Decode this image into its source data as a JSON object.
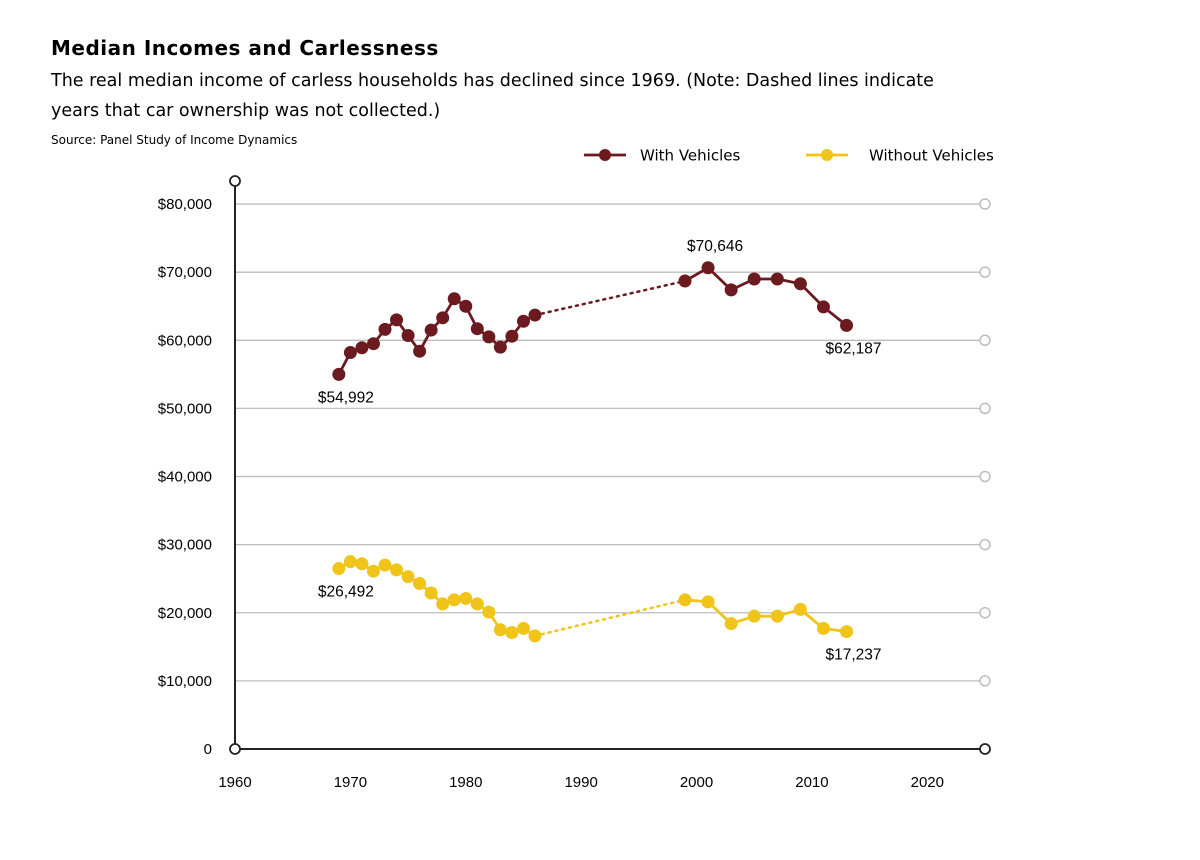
{
  "title": "Median Incomes and Carlessness",
  "subtitle": "The real median income of carless households has declined since 1969. (Note: Dashed lines indicate years that car ownership was not collected.)",
  "source": "Source: Panel Study of Income Dynamics",
  "colors": {
    "with_vehicles": "#6b1a1f",
    "without_vehicles": "#f0c419",
    "grid": "#bdbdbd",
    "axis": "#222222"
  },
  "chart_data": {
    "type": "line",
    "xlim": [
      1960,
      2025
    ],
    "ylim": [
      0,
      85000
    ],
    "x_ticks": [
      1960,
      1970,
      1980,
      1990,
      2000,
      2010,
      2020
    ],
    "x_tick_labels": [
      "1960",
      "1970",
      "1980",
      "1990",
      "2000",
      "2010",
      "2020"
    ],
    "y_ticks": [
      0,
      10000,
      20000,
      30000,
      40000,
      50000,
      60000,
      70000,
      80000
    ],
    "y_tick_labels": [
      "0",
      "$10,000",
      "$20,000",
      "$30,000",
      "$40,000",
      "$50,000",
      "$60,000",
      "$70,000",
      "$80,000"
    ],
    "grid": true,
    "legend_position": "top-right",
    "gap": [
      1986,
      1999
    ],
    "gap_style": "dotted",
    "series": [
      {
        "name": "With Vehicles",
        "color": "#6b1a1f",
        "x": [
          1969,
          1970,
          1971,
          1972,
          1973,
          1974,
          1975,
          1976,
          1977,
          1978,
          1979,
          1980,
          1981,
          1982,
          1983,
          1984,
          1985,
          1986,
          1999,
          2001,
          2003,
          2005,
          2007,
          2009,
          2011,
          2013
        ],
        "y": [
          54992,
          58200,
          58900,
          59500,
          61600,
          63000,
          60700,
          58400,
          61500,
          63300,
          66100,
          65000,
          61700,
          60500,
          59000,
          60600,
          62800,
          63700,
          68700,
          70646,
          67400,
          69000,
          69000,
          68300,
          64900,
          62187
        ]
      },
      {
        "name": "Without Vehicles",
        "color": "#f0c419",
        "x": [
          1969,
          1970,
          1971,
          1972,
          1973,
          1974,
          1975,
          1976,
          1977,
          1978,
          1979,
          1980,
          1981,
          1982,
          1983,
          1984,
          1985,
          1986,
          1999,
          2001,
          2003,
          2005,
          2007,
          2009,
          2011,
          2013
        ],
        "y": [
          26492,
          27500,
          27200,
          26100,
          27000,
          26300,
          25300,
          24300,
          22900,
          21300,
          21900,
          22100,
          21300,
          20100,
          17500,
          17100,
          17700,
          16600,
          21900,
          21600,
          18400,
          19500,
          19500,
          20500,
          17700,
          17237
        ]
      }
    ],
    "annotations": [
      {
        "text": "$54,992",
        "series": 0,
        "point": 0,
        "placement": "below"
      },
      {
        "text": "$70,646",
        "series": 0,
        "point": 19,
        "placement": "above"
      },
      {
        "text": "$62,187",
        "series": 0,
        "point": 25,
        "placement": "below"
      },
      {
        "text": "$26,492",
        "series": 1,
        "point": 0,
        "placement": "below"
      },
      {
        "text": "$17,237",
        "series": 1,
        "point": 25,
        "placement": "below"
      }
    ]
  }
}
